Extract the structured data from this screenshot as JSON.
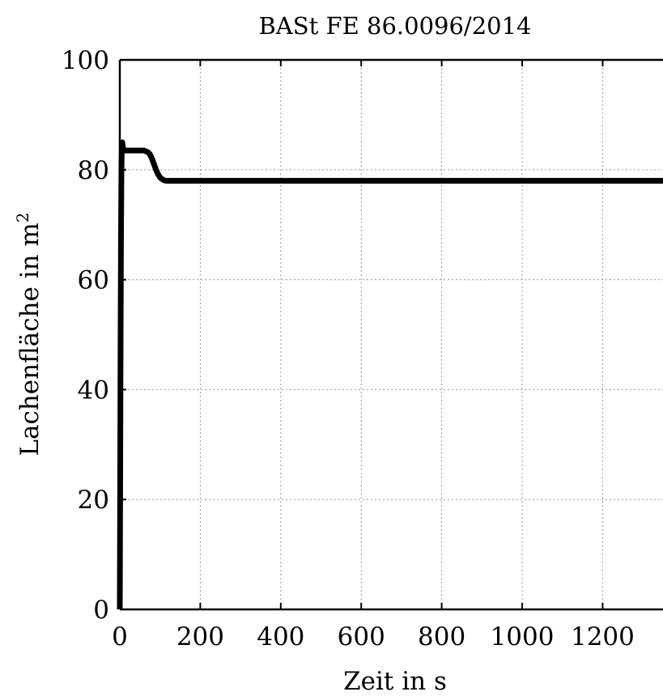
{
  "chart_data": {
    "type": "line",
    "title": "BASt FE 86.0096/2014",
    "xlabel": "Zeit in s",
    "ylabel": "Lachenfläche in m",
    "ylabel_superscript": "2",
    "xlim": [
      0,
      1350
    ],
    "ylim": [
      0,
      100
    ],
    "xticks": [
      0,
      200,
      400,
      600,
      800,
      1000,
      1200
    ],
    "yticks": [
      0,
      20,
      40,
      60,
      80,
      100
    ],
    "grid": true,
    "series": [
      {
        "color": "#000000",
        "x": [
          0,
          1,
          2,
          3,
          4,
          5,
          6,
          8,
          10,
          15,
          20,
          30,
          40,
          50,
          60,
          70,
          75,
          80,
          85,
          90,
          95,
          100,
          105,
          110,
          115,
          120,
          130,
          150,
          200,
          400,
          600,
          800,
          1000,
          1200,
          1350
        ],
        "y": [
          0,
          25,
          50,
          68,
          80,
          84,
          85,
          84,
          83.5,
          83.5,
          83.5,
          83.5,
          83.5,
          83.5,
          83.5,
          83.2,
          82.8,
          82,
          81,
          80,
          79.2,
          78.6,
          78.3,
          78.1,
          78,
          78,
          78,
          78,
          78,
          78,
          78,
          78,
          78,
          78,
          78
        ]
      }
    ]
  }
}
